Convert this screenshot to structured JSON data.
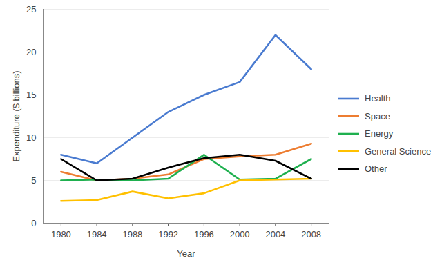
{
  "chart_data": {
    "type": "line",
    "x_label": "Year",
    "y_label": "Expenditure ($ billions)",
    "x": [
      1980,
      1984,
      1988,
      1992,
      1996,
      2000,
      2004,
      2008
    ],
    "xlim": [
      1978,
      2010
    ],
    "xticks": [
      1980,
      1984,
      1988,
      1992,
      1996,
      2000,
      2004,
      2008
    ],
    "ylim": [
      0,
      25
    ],
    "yticks": [
      0,
      5,
      10,
      15,
      20,
      25
    ],
    "grid": true,
    "legend": "right",
    "series": [
      {
        "name": "Health",
        "color": "#4a7bd0",
        "values": [
          8,
          7,
          10,
          13,
          15,
          16.5,
          22,
          18
        ]
      },
      {
        "name": "Space",
        "color": "#ed7d31",
        "values": [
          6,
          5,
          5.2,
          5.7,
          7.5,
          7.8,
          8,
          9.3
        ]
      },
      {
        "name": "Energy",
        "color": "#1fb04f",
        "values": [
          5,
          5.1,
          5,
          5.2,
          8,
          5.1,
          5.2,
          7.5
        ]
      },
      {
        "name": "General Science",
        "color": "#ffc000",
        "values": [
          2.6,
          2.7,
          3.7,
          2.9,
          3.5,
          5,
          5.1,
          5.2
        ]
      },
      {
        "name": "Other",
        "color": "#000000",
        "values": [
          7.5,
          5,
          5.2,
          6.5,
          7.6,
          8,
          7.3,
          5.2
        ]
      }
    ]
  }
}
